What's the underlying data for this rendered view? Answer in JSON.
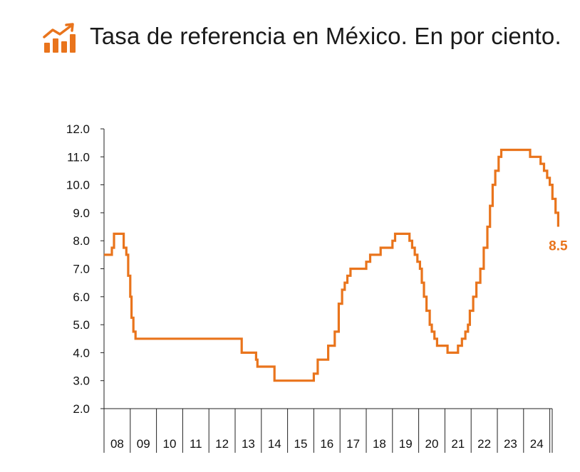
{
  "header": {
    "title": "Tasa de referencia en México. En por ciento.",
    "icon": "rising-bar-chart-icon",
    "accent_color": "#e9741c"
  },
  "chart_data": {
    "type": "line",
    "step": true,
    "title": "Tasa de referencia en México. En por ciento.",
    "xlabel": "",
    "ylabel": "",
    "ylim": [
      2.0,
      12.0
    ],
    "yticks": [
      "12.0",
      "11.0",
      "10.0",
      "9.0",
      "8.0",
      "7.0",
      "6.0",
      "5.0",
      "4.0",
      "3.0",
      "2.0"
    ],
    "categories": [
      "08",
      "09",
      "10",
      "11",
      "12",
      "13",
      "14",
      "15",
      "16",
      "17",
      "18",
      "19",
      "20",
      "21",
      "22",
      "23",
      "24"
    ],
    "xlim": [
      2008.0,
      2024.7
    ],
    "grid": false,
    "color": "#e9741c",
    "end_label": "8.5",
    "series": [
      {
        "points": [
          [
            2008.0,
            7.5
          ],
          [
            2008.2,
            7.5
          ],
          [
            2008.3,
            7.75
          ],
          [
            2008.38,
            8.25
          ],
          [
            2008.7,
            8.25
          ],
          [
            2008.75,
            7.75
          ],
          [
            2008.85,
            7.5
          ],
          [
            2008.92,
            6.75
          ],
          [
            2009.0,
            6.0
          ],
          [
            2009.05,
            5.25
          ],
          [
            2009.12,
            4.75
          ],
          [
            2009.2,
            4.5
          ],
          [
            2013.2,
            4.5
          ],
          [
            2013.25,
            4.0
          ],
          [
            2013.75,
            4.0
          ],
          [
            2013.8,
            3.75
          ],
          [
            2013.85,
            3.5
          ],
          [
            2014.45,
            3.5
          ],
          [
            2014.5,
            3.0
          ],
          [
            2015.95,
            3.0
          ],
          [
            2016.0,
            3.25
          ],
          [
            2016.15,
            3.75
          ],
          [
            2016.5,
            3.75
          ],
          [
            2016.55,
            4.25
          ],
          [
            2016.75,
            4.25
          ],
          [
            2016.8,
            4.75
          ],
          [
            2016.95,
            5.75
          ],
          [
            2017.08,
            6.25
          ],
          [
            2017.18,
            6.5
          ],
          [
            2017.28,
            6.75
          ],
          [
            2017.4,
            7.0
          ],
          [
            2017.9,
            7.0
          ],
          [
            2018.0,
            7.25
          ],
          [
            2018.15,
            7.5
          ],
          [
            2018.45,
            7.5
          ],
          [
            2018.55,
            7.75
          ],
          [
            2018.9,
            7.75
          ],
          [
            2019.0,
            8.0
          ],
          [
            2019.1,
            8.25
          ],
          [
            2019.6,
            8.25
          ],
          [
            2019.65,
            8.0
          ],
          [
            2019.75,
            7.75
          ],
          [
            2019.85,
            7.5
          ],
          [
            2019.95,
            7.25
          ],
          [
            2020.05,
            7.0
          ],
          [
            2020.12,
            6.5
          ],
          [
            2020.2,
            6.0
          ],
          [
            2020.3,
            5.5
          ],
          [
            2020.42,
            5.0
          ],
          [
            2020.5,
            4.75
          ],
          [
            2020.6,
            4.5
          ],
          [
            2020.7,
            4.25
          ],
          [
            2021.05,
            4.25
          ],
          [
            2021.1,
            4.0
          ],
          [
            2021.45,
            4.0
          ],
          [
            2021.5,
            4.25
          ],
          [
            2021.65,
            4.5
          ],
          [
            2021.78,
            4.75
          ],
          [
            2021.88,
            5.0
          ],
          [
            2021.95,
            5.5
          ],
          [
            2022.08,
            6.0
          ],
          [
            2022.2,
            6.5
          ],
          [
            2022.35,
            7.0
          ],
          [
            2022.48,
            7.75
          ],
          [
            2022.62,
            8.5
          ],
          [
            2022.72,
            9.25
          ],
          [
            2022.82,
            10.0
          ],
          [
            2022.92,
            10.5
          ],
          [
            2023.05,
            11.0
          ],
          [
            2023.15,
            11.25
          ],
          [
            2024.2,
            11.25
          ],
          [
            2024.25,
            11.0
          ],
          [
            2024.6,
            11.0
          ],
          [
            2024.65,
            10.75
          ],
          [
            2024.78,
            10.5
          ],
          [
            2024.9,
            10.25
          ],
          [
            2025.0,
            10.0
          ],
          [
            2025.1,
            9.5
          ],
          [
            2025.22,
            9.0
          ],
          [
            2025.32,
            8.5
          ]
        ]
      }
    ]
  }
}
